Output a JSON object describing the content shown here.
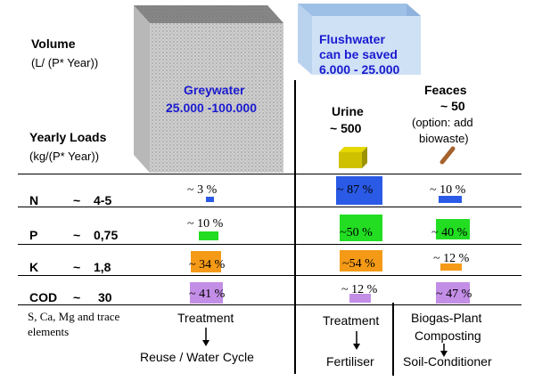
{
  "colors": {
    "N": "#2a5ae6",
    "P": "#22dd22",
    "K": "#f59a16",
    "COD": "#c38ee6",
    "blue_text": "#1a1ad0"
  },
  "volume_label": "Volume",
  "volume_unit": "(L/ (P* Year))",
  "loads_label": "Yearly Loads",
  "loads_unit": "(kg/(P* Year))",
  "greywater": {
    "name": "Greywater",
    "value": "25.000 -100.000"
  },
  "flush": {
    "line1": "Flushwater",
    "line2": "can be saved",
    "line3": "6.000 - 25.000"
  },
  "urine": {
    "name": "Urine",
    "value": "~ 500"
  },
  "feaces": {
    "name": "Feaces",
    "value": "~ 50",
    "note1": "(option: add",
    "note2": "biowaste)"
  },
  "rows": [
    {
      "key": "N",
      "label": "N",
      "approx": "~",
      "value": "4-5",
      "grey": "~ 3  %",
      "urine": "~ 87 %",
      "feaces": "~ 10 %"
    },
    {
      "key": "P",
      "label": "P",
      "approx": "~",
      "value": "0,75",
      "grey": "~ 10 %",
      "urine": "~50  %",
      "feaces": "~ 40 %"
    },
    {
      "key": "K",
      "label": "K",
      "approx": "~",
      "value": "1,8",
      "grey": "~ 34 %",
      "urine": "~54 %",
      "feaces": "~ 12 %"
    },
    {
      "key": "COD",
      "label": "COD",
      "approx": "~",
      "value": "30",
      "grey": "~ 41 %",
      "urine": "~ 12 %",
      "feaces": "~ 47 %"
    }
  ],
  "trace": {
    "line1": "S, Ca, Mg and trace",
    "line2": "elements"
  },
  "grey_footer": {
    "treatment": "Treatment",
    "result": "Reuse / Water Cycle"
  },
  "urine_footer": {
    "treatment": "Treatment",
    "result": "Fertiliser"
  },
  "feaces_footer": {
    "line1": "Biogas-Plant",
    "line2": "Composting",
    "result": "Soil-Conditioner"
  }
}
